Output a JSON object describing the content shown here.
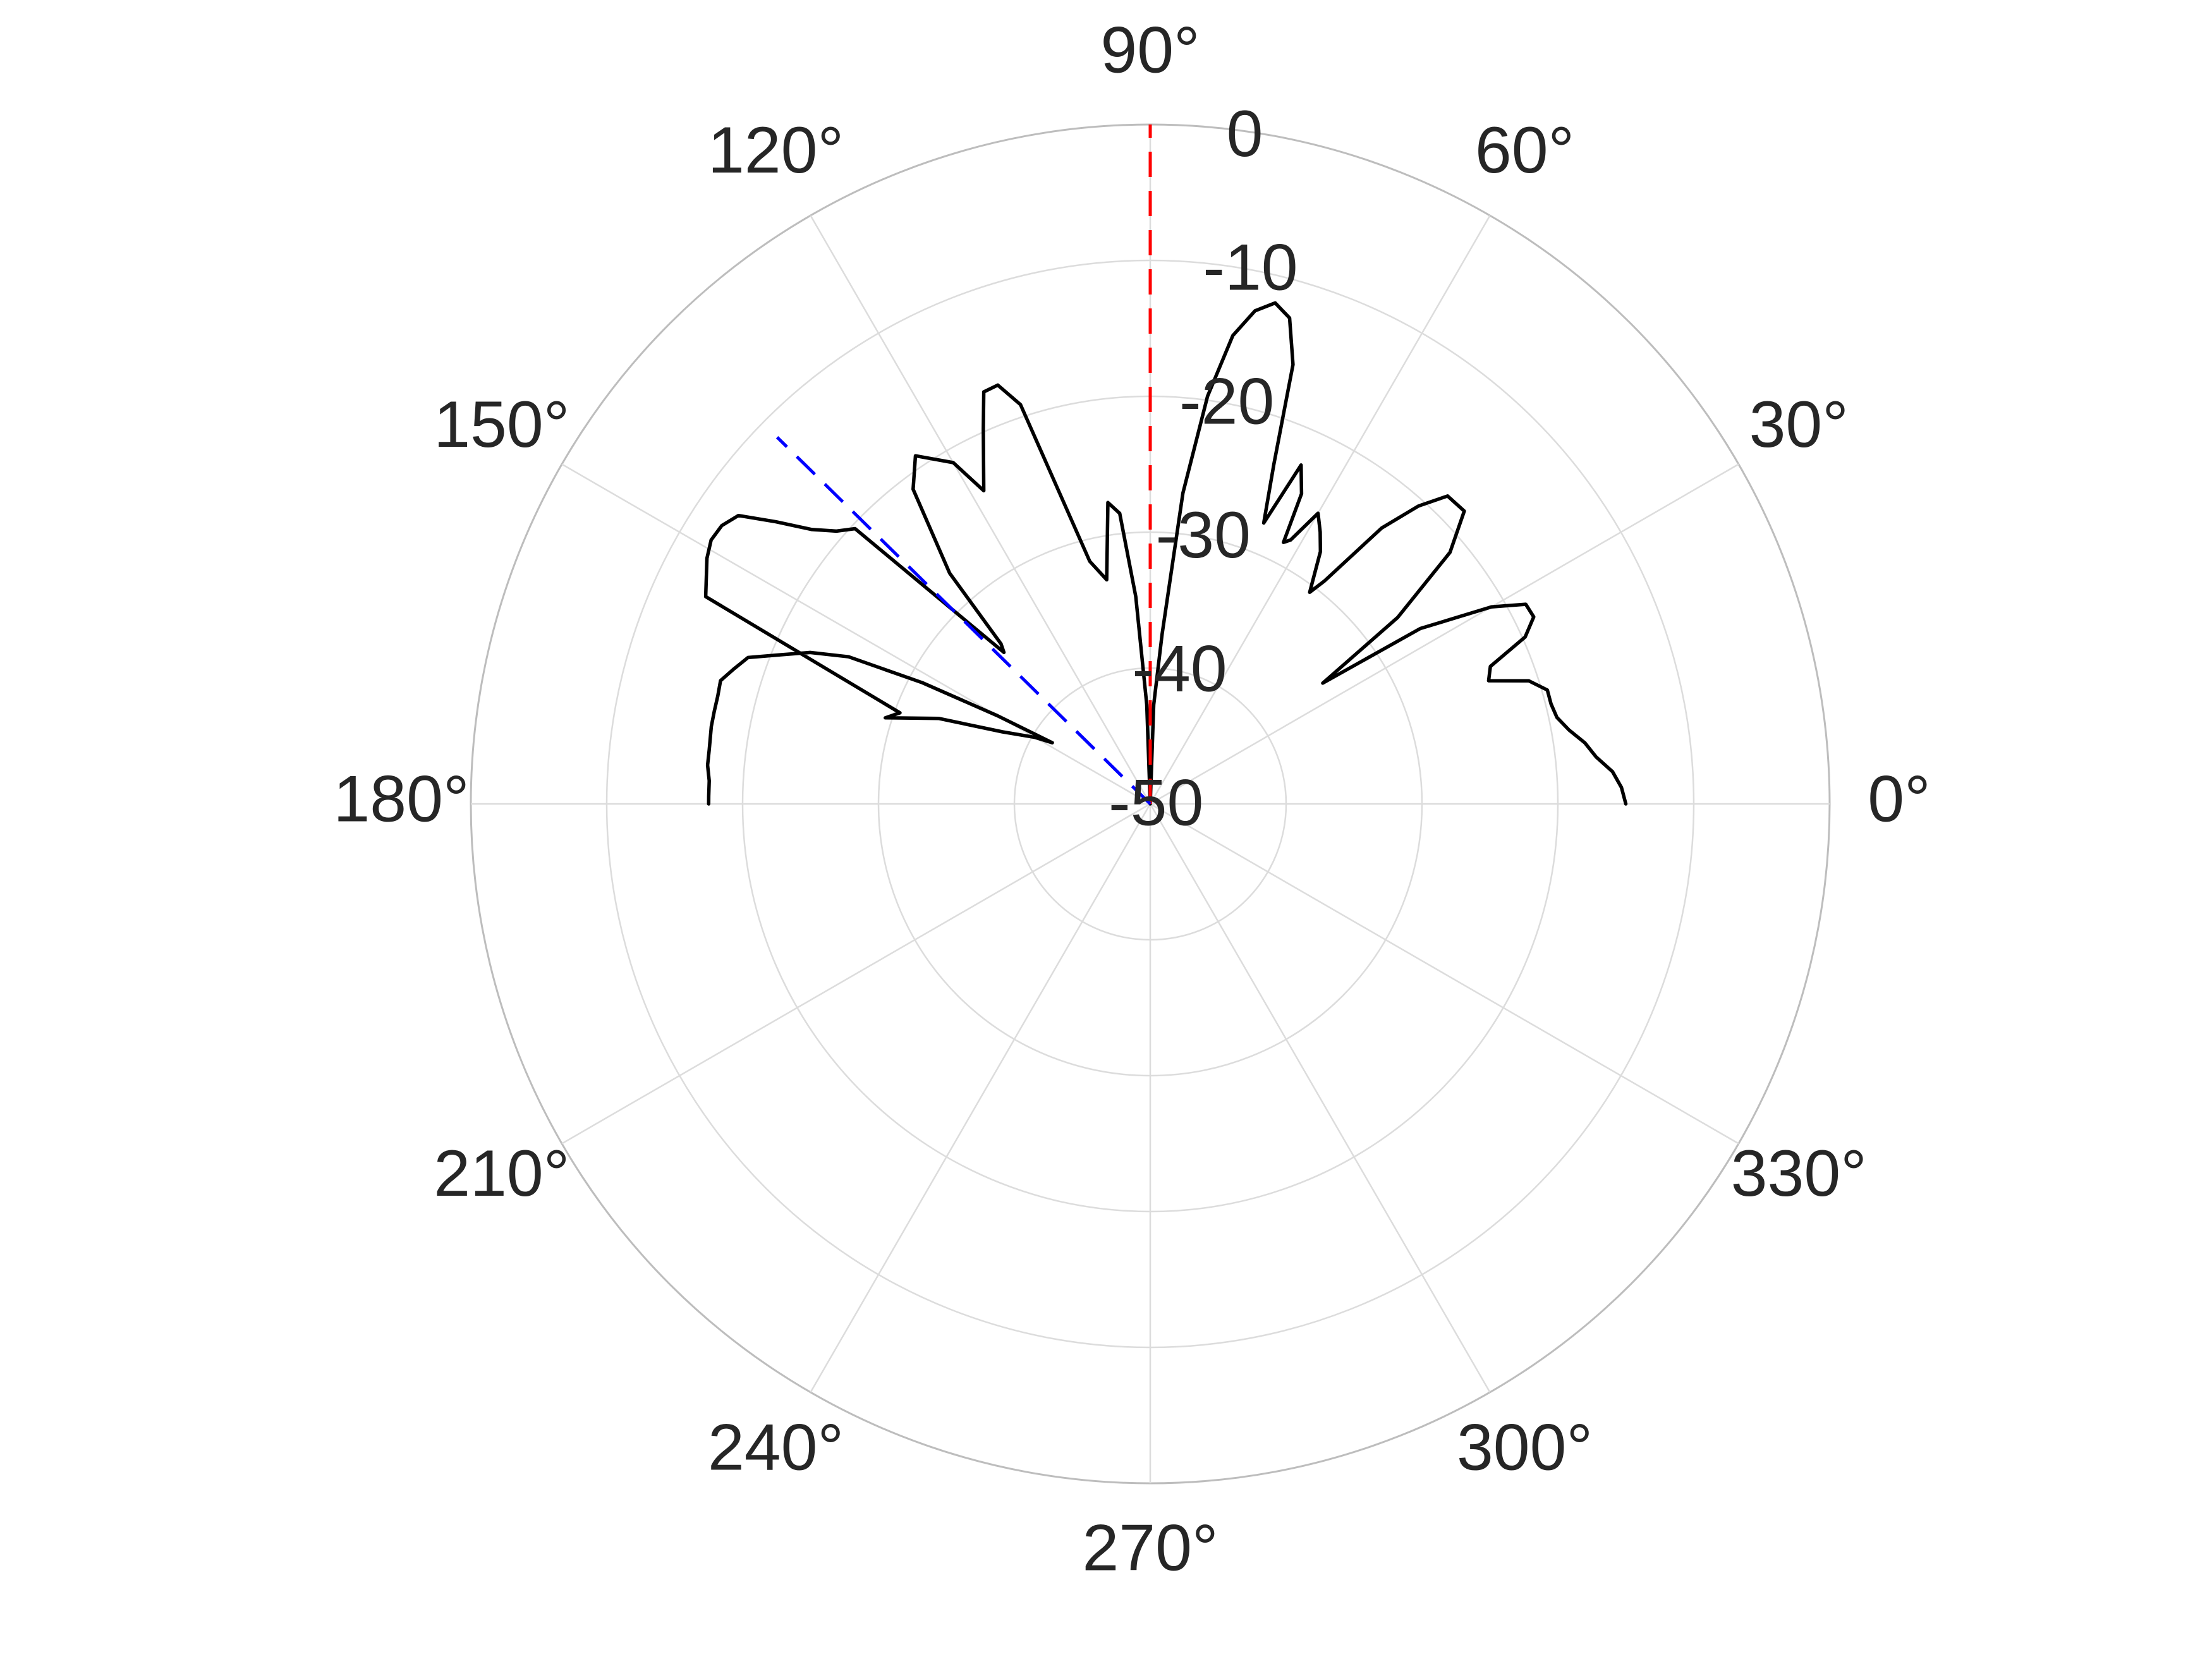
{
  "chart_data": {
    "type": "polar-line",
    "theta_unit": "degrees",
    "angle_ticks": [
      {
        "angle": 0,
        "label": "0°"
      },
      {
        "angle": 30,
        "label": "30°"
      },
      {
        "angle": 60,
        "label": "60°"
      },
      {
        "angle": 90,
        "label": "90°"
      },
      {
        "angle": 120,
        "label": "120°"
      },
      {
        "angle": 150,
        "label": "150°"
      },
      {
        "angle": 180,
        "label": "180°"
      },
      {
        "angle": 210,
        "label": "210°"
      },
      {
        "angle": 240,
        "label": "240°"
      },
      {
        "angle": 270,
        "label": "270°"
      },
      {
        "angle": 300,
        "label": "300°"
      },
      {
        "angle": 330,
        "label": "330°"
      }
    ],
    "radial_ticks": [
      {
        "value": -50,
        "label": "-50"
      },
      {
        "value": -40,
        "label": "-40"
      },
      {
        "value": -30,
        "label": "-30"
      },
      {
        "value": -20,
        "label": "-20"
      },
      {
        "value": -10,
        "label": "-10"
      },
      {
        "value": 0,
        "label": "0"
      }
    ],
    "rlim": [
      -50,
      0
    ],
    "radial_label_angle": 80,
    "grid": true,
    "series": [
      {
        "style": "solid",
        "color": "#000000",
        "points": [
          [
            0,
            -15
          ],
          [
            2,
            -15.3
          ],
          [
            4,
            -15.9
          ],
          [
            6,
            -17.0
          ],
          [
            8,
            -17.7
          ],
          [
            10,
            -18.7
          ],
          [
            12,
            -19.4
          ],
          [
            14,
            -19.6
          ],
          [
            16,
            -19.6
          ],
          [
            18,
            -20.7
          ],
          [
            20,
            -23.5
          ],
          [
            22,
            -23.0
          ],
          [
            24,
            -19.8
          ],
          [
            26,
            -18.6
          ],
          [
            28,
            -18.7
          ],
          [
            30,
            -21.0
          ],
          [
            33,
            -26.3
          ],
          [
            35,
            -34.5
          ],
          [
            37,
            -27.2
          ],
          [
            40,
            -21.2
          ],
          [
            43,
            -18.4
          ],
          [
            46,
            -18.5
          ],
          [
            48,
            -20.5
          ],
          [
            50,
            -23.5
          ],
          [
            52,
            -29.2
          ],
          [
            53,
            -30.5
          ],
          [
            56,
            -27.6
          ],
          [
            58,
            -26.4
          ],
          [
            60,
            -25.3
          ],
          [
            62,
            -28.0
          ],
          [
            63,
            -28.4
          ],
          [
            64,
            -24.6
          ],
          [
            66,
            -22.7
          ],
          [
            68,
            -27.7
          ],
          [
            70,
            -23.4
          ],
          [
            72,
            -16.0
          ],
          [
            74,
            -12.8
          ],
          [
            76,
            -12.0
          ],
          [
            78,
            -12.9
          ],
          [
            80,
            -15.0
          ],
          [
            82,
            -19.7
          ],
          [
            84,
            -27.0
          ],
          [
            86,
            -37.5
          ],
          [
            88,
            -42.7
          ],
          [
            90,
            -50
          ],
          [
            92,
            -42.7
          ],
          [
            94,
            -34.7
          ],
          [
            96,
            -28.5
          ],
          [
            98,
            -27.6
          ],
          [
            101,
            -33.2
          ],
          [
            104,
            -31.6
          ],
          [
            108,
            -19.1
          ],
          [
            110,
            -17.2
          ],
          [
            112,
            -17.3
          ],
          [
            114,
            -19.8
          ],
          [
            118,
            -23.9
          ],
          [
            120,
            -21.0
          ],
          [
            124,
            -19.1
          ],
          [
            127,
            -21.0
          ],
          [
            131,
            -27.5
          ],
          [
            133,
            -33.9
          ],
          [
            134,
            -34.5
          ],
          [
            137,
            -20.3
          ],
          [
            139,
            -19.4
          ],
          [
            141,
            -17.9
          ],
          [
            143,
            -15.5
          ],
          [
            145,
            -13.0
          ],
          [
            147,
            -12.4
          ],
          [
            149,
            -12.3
          ],
          [
            151,
            -12.7
          ],
          [
            155,
            -13.9
          ],
          [
            160,
            -30.4
          ],
          [
            162,
            -29.5
          ],
          [
            158,
            -33.2
          ],
          [
            154,
            -37.9
          ],
          [
            150,
            -40.2
          ],
          [
            148,
            -41.5
          ],
          [
            150,
            -37.0
          ],
          [
            152,
            -31.0
          ],
          [
            154,
            -25.3
          ],
          [
            156,
            -22.6
          ],
          [
            158,
            -20.7
          ],
          [
            160,
            -18.5
          ],
          [
            162,
            -17.8
          ],
          [
            164,
            -17.1
          ],
          [
            166,
            -17.2
          ],
          [
            168,
            -17.2
          ],
          [
            170,
            -17.2
          ],
          [
            173,
            -17.3
          ],
          [
            175,
            -17.3
          ],
          [
            177,
            -17.5
          ],
          [
            179,
            -17.5
          ],
          [
            180,
            -17.5
          ]
        ]
      }
    ],
    "reference_lines": [
      {
        "angle": 90,
        "color": "#ff0000",
        "style": "dashed",
        "r_start": -50,
        "r_end": 0
      },
      {
        "angle": 135.5,
        "color": "#0000ff",
        "style": "dashed",
        "r_start": -50,
        "r_end": -11.5
      }
    ]
  }
}
